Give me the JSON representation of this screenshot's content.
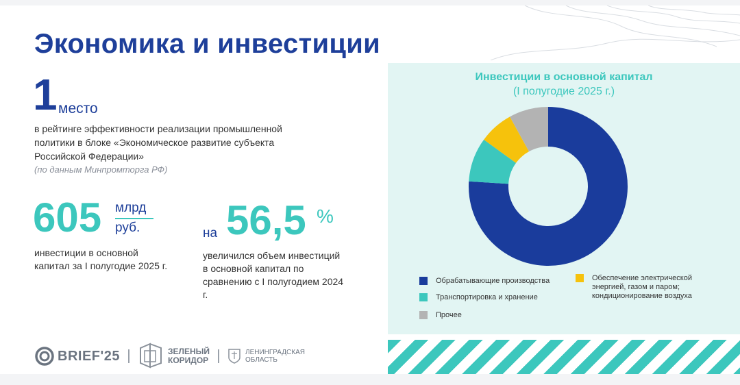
{
  "header": {
    "title": "Экономика и инвестиции"
  },
  "rank": {
    "number": "1",
    "word": "место",
    "description": "в рейтинге эффективности реализации промышленной политики в блоке «Экономическое развитие субъекта Российской Федерации»",
    "source": "(по данным Минпромторга РФ)"
  },
  "investment": {
    "value": "605",
    "unit_top": "млрд",
    "unit_bottom": "руб.",
    "description": "инвестиции в основной капитал за I полугодие 2025 г."
  },
  "growth": {
    "prefix": "на",
    "value": "56,5",
    "unit": "%",
    "description": "увеличился объем инвестиций в основной капитал по сравнению с I полугодием 2024 г."
  },
  "footer": {
    "brief": "BRIEF'25",
    "zk_line1": "ЗЕЛЕНЫЙ",
    "zk_line2": "КОРИДОР",
    "lo_line1": "ЛЕНИНГРАДСКАЯ",
    "lo_line2": "ОБЛАСТЬ"
  },
  "chart_data": {
    "type": "pie",
    "donut": true,
    "title": "Инвестиции в основной капитал",
    "subtitle": "(I полугодие 2025 г.)",
    "legend_position": "bottom",
    "categories": [
      "Обрабатывающие производства",
      "Транспортировка и хранение",
      "Обеспечение электрической энергией, газом и паром; кондиционирование воздуха",
      "Прочее"
    ],
    "values": [
      76,
      9,
      7,
      8
    ],
    "colors": [
      "#1a3c9c",
      "#3cc7bd",
      "#f6c20c",
      "#b3b3b3"
    ]
  }
}
